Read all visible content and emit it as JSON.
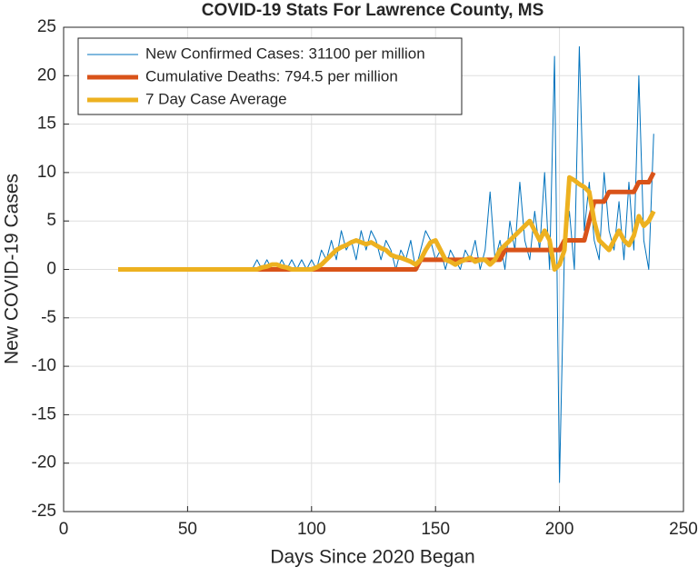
{
  "chart_data": {
    "type": "line",
    "title": "COVID-19 Stats For Lawrence County, MS",
    "xlabel": "Days Since 2020 Began",
    "ylabel": "New COVID-19 Cases",
    "xlim": [
      0,
      250
    ],
    "xticks": [
      0,
      50,
      100,
      150,
      200,
      250
    ],
    "ylim": [
      -25,
      25
    ],
    "yticks": [
      -25,
      -20,
      -15,
      -10,
      -5,
      0,
      5,
      10,
      15,
      20,
      25
    ],
    "grid": true,
    "legend": "upper-left",
    "x": [
      22,
      24,
      26,
      28,
      30,
      32,
      34,
      36,
      38,
      40,
      42,
      44,
      46,
      48,
      50,
      52,
      54,
      56,
      58,
      60,
      62,
      64,
      66,
      68,
      70,
      72,
      74,
      76,
      78,
      80,
      82,
      84,
      86,
      88,
      90,
      92,
      94,
      96,
      98,
      100,
      102,
      104,
      106,
      108,
      110,
      112,
      114,
      116,
      118,
      120,
      122,
      124,
      126,
      128,
      130,
      132,
      134,
      136,
      138,
      140,
      142,
      144,
      146,
      148,
      150,
      152,
      154,
      156,
      158,
      160,
      162,
      164,
      166,
      168,
      170,
      172,
      174,
      176,
      178,
      180,
      182,
      184,
      186,
      188,
      190,
      192,
      194,
      196,
      198,
      200,
      202,
      204,
      206,
      208,
      210,
      212,
      214,
      216,
      218,
      220,
      222,
      224,
      226,
      228,
      230,
      232,
      234,
      236,
      238
    ],
    "series": [
      {
        "name": "New Confirmed Cases: 31100 per million",
        "color": "#0072BD",
        "width": 1,
        "values": [
          0,
          0,
          0,
          0,
          0,
          0,
          0,
          0,
          0,
          0,
          0,
          0,
          0,
          0,
          0,
          0,
          0,
          0,
          0,
          0,
          0,
          0,
          0,
          0,
          0,
          0,
          0,
          0,
          1,
          0,
          1,
          0,
          0,
          1,
          0,
          1,
          0,
          1,
          0,
          1,
          0,
          2,
          1,
          3,
          1,
          4,
          2,
          3,
          1,
          4,
          2,
          4,
          3,
          1,
          3,
          2,
          0,
          2,
          1,
          3,
          0,
          2,
          4,
          3,
          1,
          2,
          0,
          2,
          1,
          0,
          2,
          1,
          3,
          0,
          2,
          8,
          1,
          3,
          0,
          5,
          2,
          9,
          3,
          1,
          6,
          2,
          10,
          0,
          22,
          -22,
          2,
          6,
          0,
          23,
          4,
          9,
          3,
          1,
          10,
          4,
          2,
          7,
          1,
          9,
          2,
          20,
          3,
          0,
          14
        ]
      },
      {
        "name": "Cumulative Deaths: 794.5 per million",
        "color": "#D95319",
        "width": 5,
        "values": [
          0,
          0,
          0,
          0,
          0,
          0,
          0,
          0,
          0,
          0,
          0,
          0,
          0,
          0,
          0,
          0,
          0,
          0,
          0,
          0,
          0,
          0,
          0,
          0,
          0,
          0,
          0,
          0,
          0,
          0,
          0,
          0,
          0,
          0,
          0,
          0,
          0,
          0,
          0,
          0,
          0,
          0,
          0,
          0,
          0,
          0,
          0,
          0,
          0,
          0,
          0,
          0,
          0,
          0,
          0,
          0,
          0,
          0,
          0,
          0,
          0,
          1,
          1,
          1,
          1,
          1,
          1,
          1,
          1,
          1,
          1,
          1,
          1,
          1,
          1,
          1,
          1,
          1,
          2,
          2,
          2,
          2,
          2,
          2,
          2,
          2,
          2,
          2,
          2,
          2,
          3,
          3,
          3,
          3,
          3,
          5,
          7,
          7,
          7,
          8,
          8,
          8,
          8,
          8,
          8,
          9,
          9,
          9,
          10
        ]
      },
      {
        "name": "7 Day Case Average",
        "color": "#EDB120",
        "width": 5,
        "values": [
          0,
          0,
          0,
          0,
          0,
          0,
          0,
          0,
          0,
          0,
          0,
          0,
          0,
          0,
          0,
          0,
          0,
          0,
          0,
          0,
          0,
          0,
          0,
          0,
          0,
          0,
          0,
          0,
          0,
          0.2,
          0.3,
          0.5,
          0.5,
          0.3,
          0.2,
          0,
          0,
          0,
          0,
          0,
          0.2,
          0.5,
          1,
          1.5,
          2,
          2.3,
          2.5,
          2.8,
          3,
          2.8,
          2.6,
          2.8,
          2.5,
          2.2,
          2,
          1.5,
          1.3,
          1.2,
          1,
          0.8,
          0.5,
          1,
          2,
          2.8,
          3,
          2,
          1,
          0.8,
          0.5,
          0.8,
          1,
          1.2,
          0.8,
          1,
          1,
          0.5,
          1,
          2,
          2.5,
          3,
          3.5,
          4,
          4.5,
          5,
          4,
          3,
          4,
          3,
          0,
          0.5,
          2,
          9.5,
          9.2,
          8.8,
          8.5,
          8,
          5,
          3,
          2.5,
          2,
          3,
          4,
          3,
          2.5,
          3.5,
          5.5,
          4.5,
          5,
          6
        ]
      }
    ]
  }
}
